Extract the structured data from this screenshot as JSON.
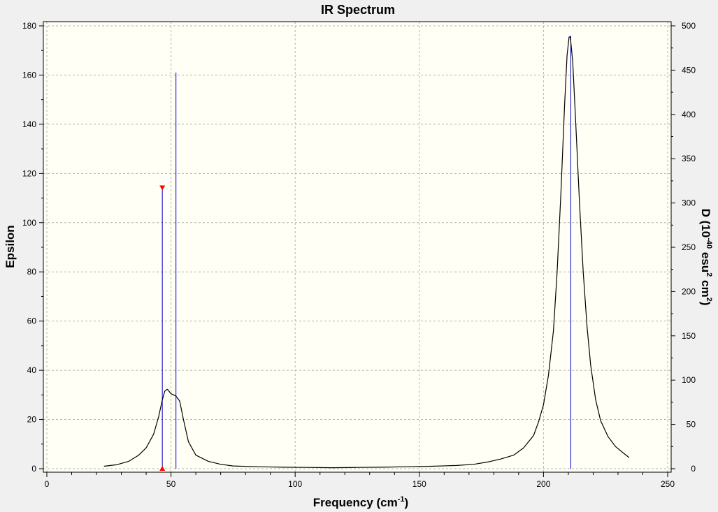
{
  "chart_data": {
    "type": "line",
    "title": "IR Spectrum",
    "xlabel": {
      "main": "Frequency (cm",
      "sup": "-1",
      "tail": ")"
    },
    "ylabel_left": "Epsilon",
    "ylabel_right": {
      "p1": "D (10",
      "sup1": "-40",
      "p2": " esu",
      "sup2": "2",
      "p3": " cm",
      "sup3": "2",
      "p4": ")"
    },
    "xlim": [
      0,
      250
    ],
    "ylim_left": [
      0,
      180
    ],
    "ylim_right": [
      0,
      500
    ],
    "x_ticks": [
      0,
      50,
      100,
      150,
      200,
      250
    ],
    "y_left_ticks": [
      0,
      20,
      40,
      60,
      80,
      100,
      120,
      140,
      160,
      180
    ],
    "y_right_ticks": [
      0,
      50,
      100,
      150,
      200,
      250,
      300,
      350,
      400,
      450,
      500
    ],
    "grid": true,
    "colors": {
      "plot_bg": "#fffff6",
      "spectrum": "#000000",
      "sticks": "#0000cc",
      "markers": "#ff0000",
      "grid": "#b4b4b4"
    },
    "spectrum": [
      [
        23,
        1.0
      ],
      [
        28,
        1.6
      ],
      [
        33,
        3.0
      ],
      [
        37,
        5.5
      ],
      [
        40,
        8.5
      ],
      [
        43,
        14.0
      ],
      [
        45,
        21.0
      ],
      [
        46.5,
        28.0
      ],
      [
        47.5,
        31.5
      ],
      [
        48.5,
        32.3
      ],
      [
        50,
        30.5
      ],
      [
        52,
        29.5
      ],
      [
        53.5,
        27.5
      ],
      [
        55,
        20.0
      ],
      [
        57,
        11.0
      ],
      [
        60,
        5.5
      ],
      [
        65,
        3.0
      ],
      [
        70,
        1.8
      ],
      [
        75,
        1.1
      ],
      [
        85,
        0.8
      ],
      [
        95,
        0.6
      ],
      [
        105,
        0.5
      ],
      [
        115,
        0.4
      ],
      [
        125,
        0.5
      ],
      [
        135,
        0.6
      ],
      [
        145,
        0.8
      ],
      [
        155,
        1.0
      ],
      [
        165,
        1.3
      ],
      [
        172,
        1.8
      ],
      [
        178,
        2.8
      ],
      [
        183,
        4.0
      ],
      [
        188,
        5.5
      ],
      [
        192,
        8.5
      ],
      [
        196,
        13.5
      ],
      [
        198,
        19.0
      ],
      [
        200,
        26.0
      ],
      [
        202,
        38.0
      ],
      [
        204,
        56.0
      ],
      [
        205.5,
        80.0
      ],
      [
        207,
        112.0
      ],
      [
        208.5,
        148.0
      ],
      [
        209.5,
        168.0
      ],
      [
        210.3,
        175.5
      ],
      [
        210.8,
        175.5
      ],
      [
        211.8,
        165.0
      ],
      [
        213,
        140.0
      ],
      [
        214.5,
        108.0
      ],
      [
        216,
        80.0
      ],
      [
        217.5,
        58.0
      ],
      [
        219,
        42.0
      ],
      [
        221,
        28.0
      ],
      [
        223,
        19.5
      ],
      [
        226,
        13.0
      ],
      [
        229,
        9.0
      ],
      [
        232,
        6.5
      ],
      [
        234.5,
        4.5
      ]
    ],
    "sticks": [
      {
        "x": 46.5,
        "y": 114.0
      },
      {
        "x": 52.0,
        "y": 161.0
      },
      {
        "x": 211.0,
        "y": 176.0
      }
    ],
    "selected_marker": {
      "x": 46.5,
      "y": 114.0
    }
  }
}
